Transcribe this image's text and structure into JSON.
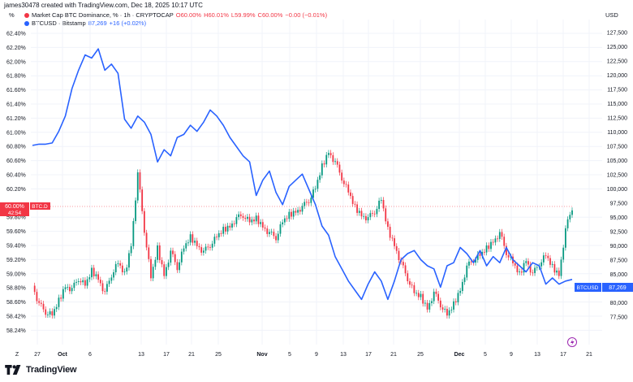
{
  "header": {
    "credit": "james30478 created with TradingView.com, Dec 18, 2025 10:17 UTC",
    "left_unit": "%",
    "right_unit": "USD"
  },
  "legend": {
    "row1": {
      "title": "Market Cap BTC Dominance, % · 1h · CRYPTOCAP",
      "o": "O60.00%",
      "h": "H60.01%",
      "l": "L59.99%",
      "c": "C60.00%",
      "chg": "−0.00 (−0.01%)"
    },
    "row2": {
      "title": "BTCUSD · Bitstamp",
      "price": "87,269",
      "chg": "+16 (+0.02%)"
    }
  },
  "price_tags": {
    "btcd_label": "60.00%",
    "btcd_sym": "BTC.D",
    "btcd_sub": "42:54",
    "btcusd_sym": "BTCUSD",
    "btcusd_label": "87,269"
  },
  "footer": {
    "brand": "TradingView"
  },
  "colors": {
    "blue": "#2962ff",
    "red": "#f23645",
    "green": "#089981",
    "grid": "#f0f3fa"
  },
  "chart_data": {
    "type": "line",
    "x_tick_labels": [
      "Z",
      "27",
      "Oct",
      "6",
      "13",
      "17",
      "21",
      "25",
      "Nov",
      "5",
      "9",
      "13",
      "17",
      "21",
      "25",
      "Dec",
      "5",
      "9",
      "13",
      "17",
      "21"
    ],
    "left_axis": {
      "unit": "%",
      "ticks": [
        "62.40%",
        "62.20%",
        "62.00%",
        "61.80%",
        "61.60%",
        "61.40%",
        "61.20%",
        "61.00%",
        "60.80%",
        "60.60%",
        "60.40%",
        "60.20%",
        "59.80%",
        "59.60%",
        "59.40%",
        "59.20%",
        "59.00%",
        "58.80%",
        "58.60%",
        "58.42%",
        "58.24%"
      ],
      "range": [
        58.16,
        62.52
      ]
    },
    "right_axis": {
      "unit": "USD",
      "ticks": [
        "127,500",
        "125,000",
        "122,500",
        "120,000",
        "117,500",
        "115,000",
        "112,500",
        "110,000",
        "107,500",
        "105,000",
        "102,500",
        "100,000",
        "97,500",
        "95,000",
        "92,500",
        "90,000",
        "87,500",
        "85,000",
        "82,500",
        "80,000",
        "77,500"
      ],
      "range": [
        76600,
        129800
      ]
    },
    "series": [
      {
        "name": "Market Cap BTC Dominance, % · 1h · CRYPTOCAP",
        "axis": "left",
        "style": "candles",
        "x_days": [
          0,
          1,
          2,
          3,
          4,
          5,
          6,
          7,
          8,
          9,
          10,
          11,
          12,
          13,
          14,
          15,
          16,
          17,
          18,
          19,
          20,
          21,
          22,
          23,
          24,
          25,
          26,
          27,
          28,
          29,
          30,
          31,
          32,
          33,
          34,
          35,
          36,
          37,
          38,
          39,
          40,
          41,
          42,
          43,
          44,
          45,
          46,
          47,
          48,
          49,
          50,
          51,
          52,
          53,
          54,
          55,
          56,
          57,
          58,
          59,
          60,
          61,
          62,
          63,
          64,
          65,
          66,
          67,
          68,
          69,
          70,
          71,
          72,
          73,
          74,
          75,
          76,
          77,
          78,
          79,
          80,
          81,
          82
        ],
        "values": [
          58.95,
          58.7,
          58.6,
          58.55,
          58.75,
          58.95,
          58.9,
          59.05,
          58.95,
          59.15,
          59.05,
          58.85,
          59.1,
          59.25,
          59.1,
          59.5,
          60.45,
          59.7,
          59.05,
          59.45,
          59.1,
          59.4,
          59.2,
          59.45,
          59.6,
          59.5,
          59.4,
          59.5,
          59.6,
          59.7,
          59.75,
          59.85,
          59.9,
          59.8,
          59.85,
          59.75,
          59.65,
          59.6,
          59.8,
          59.9,
          59.95,
          60.0,
          60.1,
          60.25,
          60.55,
          60.75,
          60.6,
          60.4,
          60.2,
          60.0,
          59.9,
          59.85,
          59.95,
          60.1,
          59.7,
          59.5,
          59.25,
          59.05,
          58.85,
          58.8,
          58.65,
          58.85,
          58.7,
          58.55,
          58.7,
          58.9,
          59.2,
          59.3,
          59.35,
          59.45,
          59.55,
          59.65,
          59.4,
          59.25,
          59.1,
          59.3,
          59.1,
          59.25,
          59.35,
          59.2,
          59.1,
          59.7,
          60.0
        ]
      },
      {
        "name": "BTCUSD · Bitstamp",
        "axis": "right",
        "style": "line",
        "x_days": [
          0,
          1,
          2,
          3,
          4,
          5,
          6,
          7,
          8,
          9,
          10,
          11,
          12,
          13,
          14,
          15,
          16,
          17,
          18,
          19,
          20,
          21,
          22,
          23,
          24,
          25,
          26,
          27,
          28,
          29,
          30,
          31,
          32,
          33,
          34,
          35,
          36,
          37,
          38,
          39,
          40,
          41,
          42,
          43,
          44,
          45,
          46,
          47,
          48,
          49,
          50,
          51,
          52,
          53,
          54,
          55,
          56,
          57,
          58,
          59,
          60,
          61,
          62,
          63,
          64,
          65,
          66,
          67,
          68,
          69,
          70,
          71,
          72,
          73,
          74,
          75,
          76,
          77,
          78,
          79,
          80,
          81,
          82
        ],
        "values": [
          109200,
          109400,
          109400,
          109600,
          111500,
          114000,
          118500,
          121500,
          124000,
          123500,
          125000,
          121500,
          122500,
          121000,
          113500,
          112000,
          114000,
          113000,
          111000,
          106500,
          108500,
          107500,
          110500,
          111000,
          112500,
          111500,
          113000,
          115000,
          114000,
          112500,
          110500,
          109000,
          107500,
          106500,
          101000,
          103500,
          105000,
          101500,
          99500,
          102500,
          103500,
          104500,
          102000,
          99500,
          96000,
          94500,
          91000,
          89000,
          87000,
          85500,
          84000,
          86500,
          88500,
          87000,
          84000,
          87000,
          90500,
          91500,
          92000,
          90500,
          89500,
          89000,
          86000,
          89500,
          90000,
          92500,
          91500,
          90000,
          92000,
          89500,
          91000,
          90000,
          92500,
          90500,
          89500,
          88500,
          90000,
          89500,
          86500,
          87500,
          86500,
          87000,
          87269
        ]
      }
    ],
    "markers": [
      {
        "series": "BTCUSD · Bitstamp",
        "value": 87269,
        "label": "87,269"
      },
      {
        "series": "Market Cap BTC Dominance, % · 1h · CRYPTOCAP",
        "value": 60.0,
        "label": "60.00%"
      }
    ]
  }
}
